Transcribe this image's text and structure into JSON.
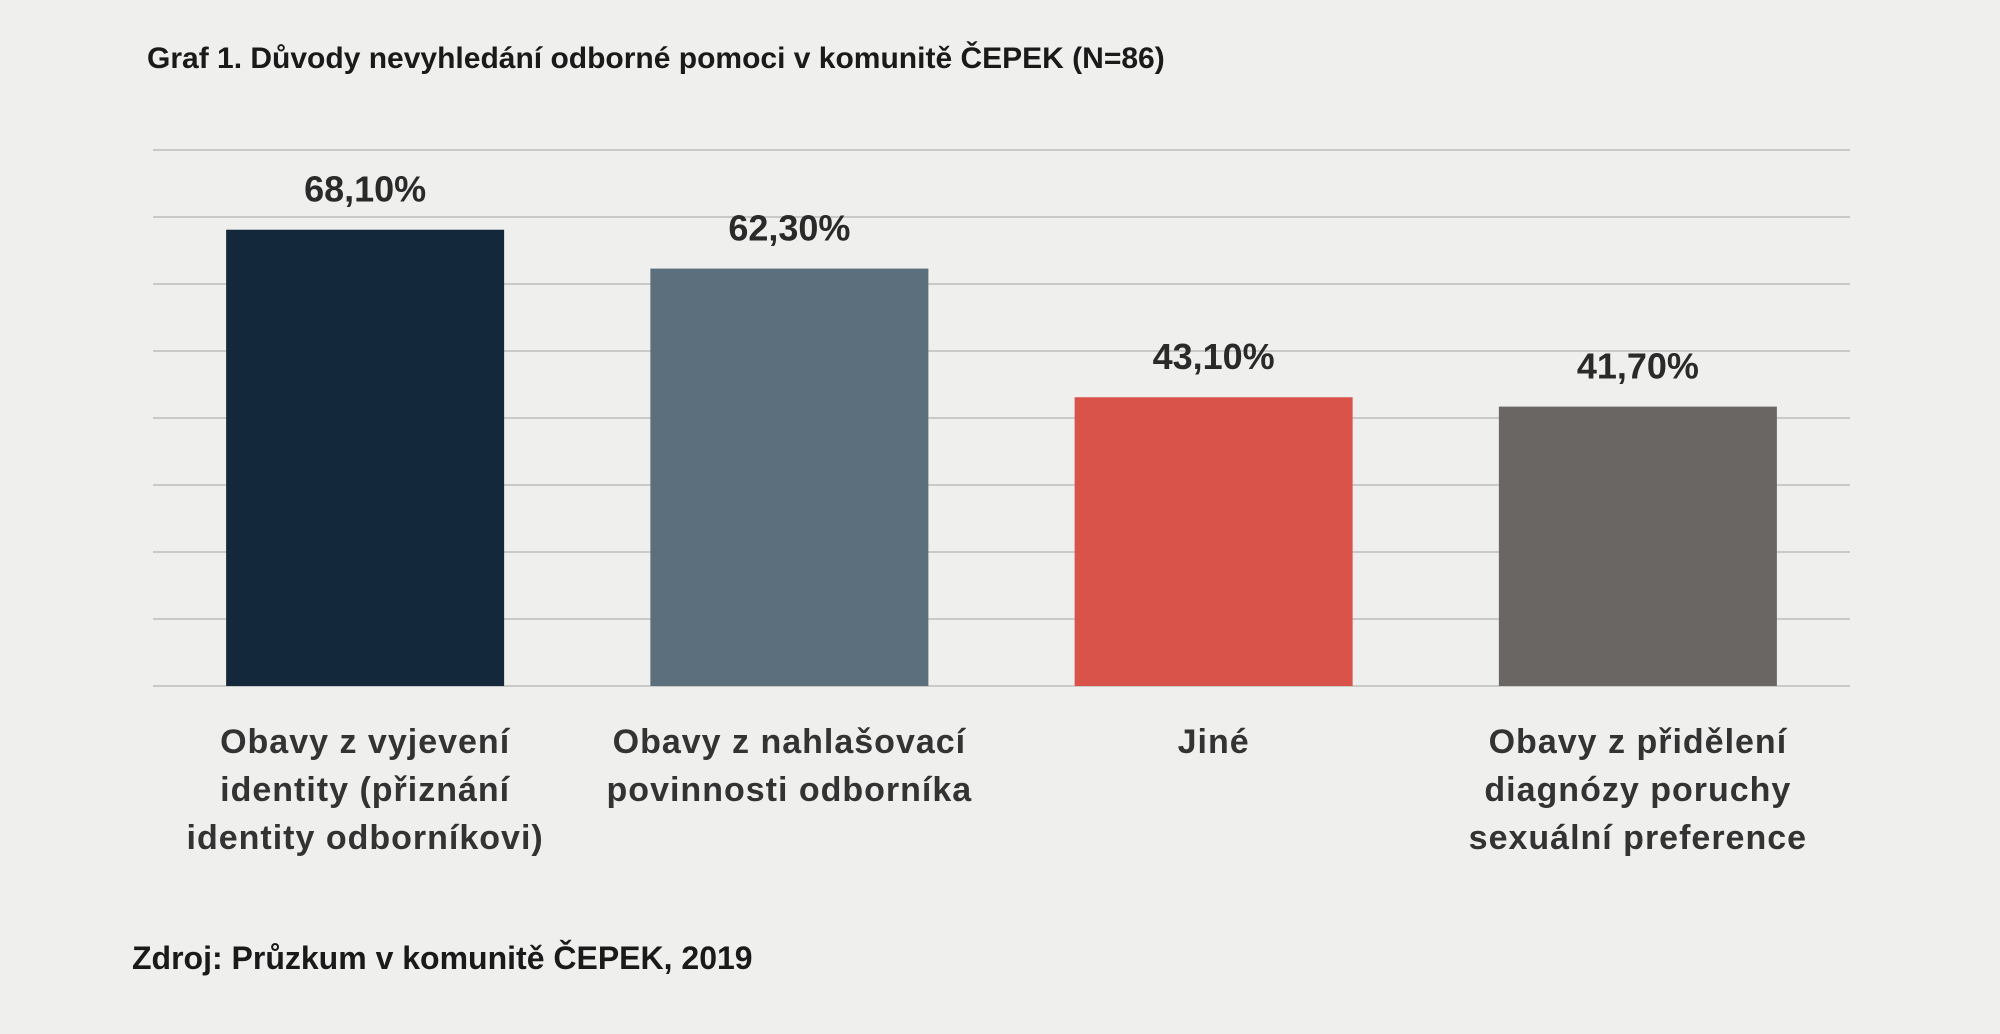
{
  "chart_data": {
    "type": "bar",
    "title": "Graf 1. Důvody nevyhledání odborné pomoci v komunitě ČEPEK (N=86)",
    "categories": [
      "Obavy z vyjevení identity (přiznání identity odborníkovi)",
      "Obavy z nahlašovací povinnosti odborníka",
      "Jiné",
      "Obavy z přidělení diagnózy poruchy sexuální preference"
    ],
    "values": [
      68.1,
      62.3,
      43.1,
      41.7
    ],
    "value_labels": [
      "68,10%",
      "62,30%",
      "43,10%",
      "41,70%"
    ],
    "colors": [
      "#14283b",
      "#5b6f7d",
      "#d9534b",
      "#6a6664"
    ],
    "ylim": [
      0,
      80
    ],
    "yticks": [
      0,
      10,
      20,
      30,
      40,
      50,
      60,
      70,
      80
    ],
    "grid": true,
    "source": "Zdroj: Průzkum v komunitě ČEPEK, 2019"
  }
}
